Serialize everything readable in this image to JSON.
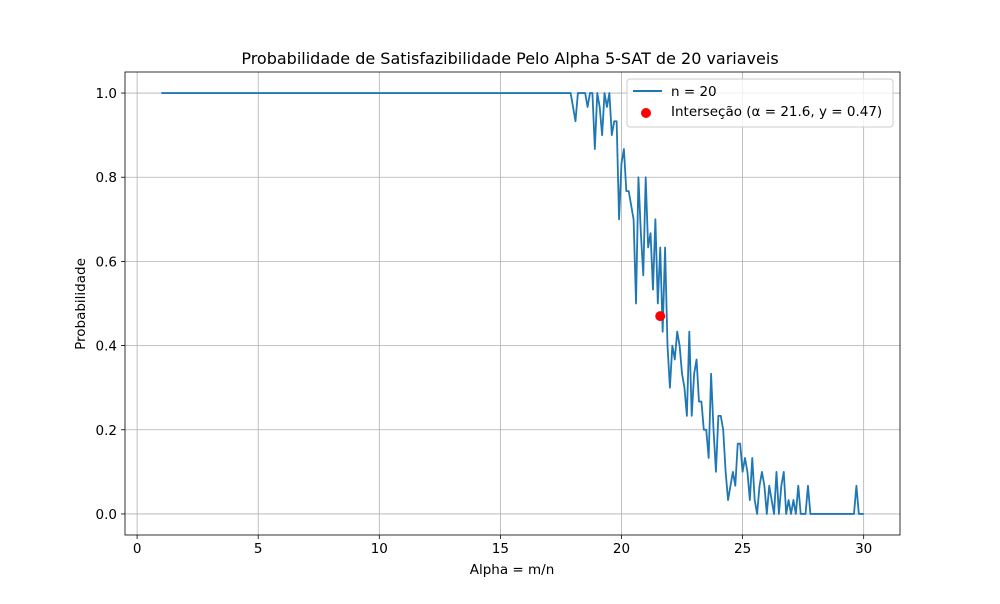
{
  "chart_data": {
    "type": "line",
    "title": "Probabilidade de Satisfazibilidade Pelo Alpha 5-SAT de 20 variaveis",
    "xlabel": "Alpha = m/n",
    "ylabel": "Probabilidade",
    "xlim": [
      -0.5,
      31.5
    ],
    "ylim": [
      -0.05,
      1.05
    ],
    "xticks": [
      0,
      5,
      10,
      15,
      20,
      25,
      30
    ],
    "xtick_labels": [
      "0",
      "5",
      "10",
      "15",
      "20",
      "25",
      "30"
    ],
    "yticks": [
      0.0,
      0.2,
      0.4,
      0.6,
      0.8,
      1.0
    ],
    "ytick_labels": [
      "0.0",
      "0.2",
      "0.4",
      "0.6",
      "0.8",
      "1.0"
    ],
    "grid": true,
    "legend_position": "top-right",
    "series": [
      {
        "name": "n = 20",
        "color": "#1f77b4",
        "x": [
          1,
          17.9,
          18.0,
          18.1,
          18.2,
          18.3,
          18.4,
          18.5,
          18.6,
          18.7,
          18.8,
          18.9,
          19.0,
          19.1,
          19.2,
          19.3,
          19.4,
          19.5,
          19.6,
          19.7,
          19.8,
          19.9,
          20.0,
          20.1,
          20.2,
          20.3,
          20.4,
          20.5,
          20.6,
          20.7,
          20.8,
          20.9,
          21.0,
          21.1,
          21.2,
          21.3,
          21.4,
          21.5,
          21.6,
          21.7,
          21.8,
          21.9,
          22.0,
          22.1,
          22.2,
          22.3,
          22.4,
          22.5,
          22.6,
          22.7,
          22.8,
          22.9,
          23.0,
          23.1,
          23.2,
          23.3,
          23.4,
          23.5,
          23.6,
          23.7,
          23.8,
          23.9,
          24.0,
          24.1,
          24.2,
          24.3,
          24.4,
          24.5,
          24.6,
          24.7,
          24.8,
          24.9,
          25.0,
          25.1,
          25.2,
          25.3,
          25.4,
          25.5,
          25.6,
          25.7,
          25.8,
          25.9,
          26.0,
          26.1,
          26.2,
          26.3,
          26.4,
          26.5,
          26.6,
          26.7,
          26.8,
          26.9,
          27.0,
          27.1,
          27.2,
          27.3,
          27.4,
          27.5,
          27.6,
          27.7,
          27.8,
          27.9,
          28.0,
          28.1,
          28.2,
          29.6,
          29.7,
          29.8,
          29.9,
          30.0
        ],
        "y": [
          1.0,
          1.0,
          0.967,
          0.933,
          1.0,
          1.0,
          1.0,
          1.0,
          0.967,
          1.0,
          1.0,
          0.867,
          1.0,
          0.967,
          0.9,
          1.0,
          0.967,
          1.0,
          0.9,
          0.933,
          0.933,
          0.7,
          0.833,
          0.867,
          0.767,
          0.767,
          0.733,
          0.7,
          0.5,
          0.8,
          0.667,
          0.567,
          0.8,
          0.633,
          0.667,
          0.533,
          0.7,
          0.5,
          0.633,
          0.433,
          0.633,
          0.4,
          0.3,
          0.4,
          0.367,
          0.433,
          0.4,
          0.333,
          0.3,
          0.233,
          0.433,
          0.233,
          0.333,
          0.367,
          0.267,
          0.267,
          0.2,
          0.2,
          0.133,
          0.333,
          0.2,
          0.1,
          0.233,
          0.233,
          0.2,
          0.1,
          0.033,
          0.067,
          0.1,
          0.067,
          0.167,
          0.167,
          0.1,
          0.133,
          0.1,
          0.033,
          0.133,
          0.033,
          0.0,
          0.067,
          0.1,
          0.067,
          0.0,
          0.067,
          0.033,
          0.0,
          0.1,
          0.0,
          0.067,
          0.1,
          0.0,
          0.033,
          0.0,
          0.033,
          0.0,
          0.067,
          0.0,
          0.0,
          0.0,
          0.067,
          0.0,
          0.0,
          0.0,
          0.0,
          0.0,
          0.0,
          0.067,
          0.0,
          0.0,
          0.0
        ]
      }
    ],
    "markers": [
      {
        "name": "Interseção (α = 21.6, y = 0.47)",
        "x": 21.6,
        "y": 0.47,
        "color": "#ff0000"
      }
    ]
  }
}
